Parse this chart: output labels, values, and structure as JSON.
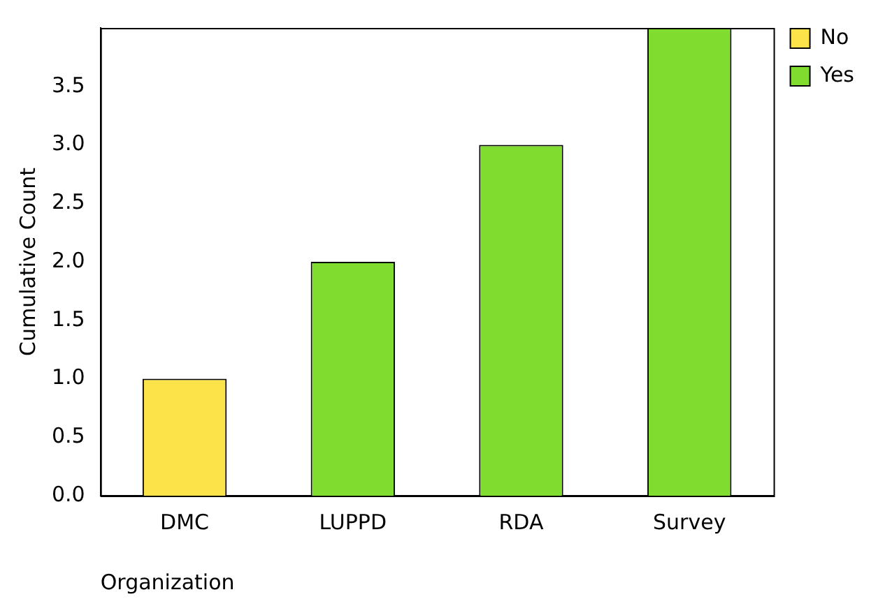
{
  "chart_data": {
    "type": "bar",
    "categories": [
      "DMC",
      "LUPPD",
      "RDA",
      "Survey"
    ],
    "series": [
      {
        "name": "No",
        "color": "#fce34a",
        "values": [
          1,
          null,
          null,
          null
        ]
      },
      {
        "name": "Yes",
        "color": "#80dc2e",
        "values": [
          null,
          2,
          3,
          4
        ]
      }
    ],
    "xlabel": "Organization",
    "ylabel": "Cumulative Count",
    "ylim": [
      0,
      4
    ],
    "yticks": [
      {
        "value": 0,
        "label": "0.0"
      },
      0.5,
      {
        "value": 1,
        "label": "1.0"
      },
      1.5,
      {
        "value": 2,
        "label": "2.0"
      },
      2.5,
      {
        "value": 3,
        "label": "3.0"
      },
      3.5
    ],
    "grid": false,
    "legend": "top right"
  }
}
